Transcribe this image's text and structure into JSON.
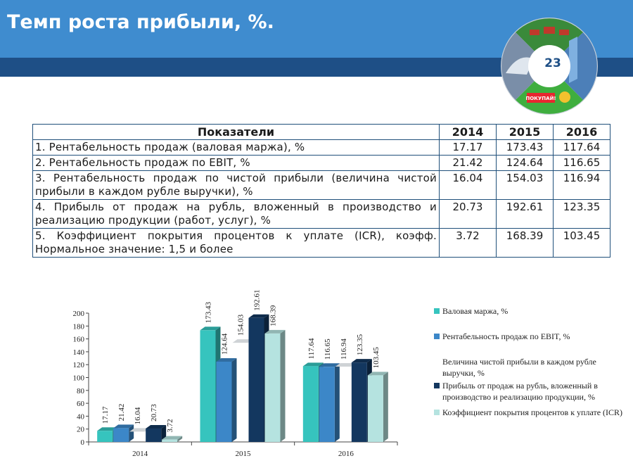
{
  "title": "Темп роста прибыли, %.",
  "page_number": "23",
  "emblem": {
    "badge_text": "ПОКУПАЙ!"
  },
  "table": {
    "headers": [
      "Показатели",
      "2014",
      "2015",
      "2016"
    ],
    "rows": [
      {
        "label": "1. Рентабельность продаж (валовая маржа), %",
        "values": [
          "17.17",
          "173.43",
          "117.64"
        ]
      },
      {
        "label": "2. Рентабельность продаж по EBIT, %",
        "values": [
          "21.42",
          "124.64",
          "116.65"
        ]
      },
      {
        "label": "3. Рентабельность продаж по чистой прибыли (величина чистой прибыли в каждом рубле выручки), %",
        "values": [
          "16.04",
          "154.03",
          "116.94"
        ]
      },
      {
        "label": "4. Прибыль от продаж на рубль, вложенный в производство и реализацию продукции (работ, услуг), %",
        "values": [
          "20.73",
          "192.61",
          "123.35"
        ]
      },
      {
        "label": "5. Коэффициент покрытия процентов к уплате (ICR), коэфф. Нормальное значение: 1,5 и более",
        "values": [
          "3.72",
          "168.39",
          "103.45"
        ]
      }
    ]
  },
  "chart_data": {
    "type": "bar",
    "categories": [
      "2014",
      "2015",
      "2016"
    ],
    "ylim": [
      0,
      200
    ],
    "yticks": [
      0,
      20,
      40,
      60,
      80,
      100,
      120,
      140,
      160,
      180,
      200
    ],
    "grid": false,
    "legend_position": "right",
    "series": [
      {
        "name": "Валовая маржа, %",
        "color": "#36c4be",
        "values": [
          17.17,
          173.43,
          117.64
        ]
      },
      {
        "name": "Рентабельность продаж по EBIT, %",
        "color": "#3c87c8",
        "values": [
          21.42,
          124.64,
          116.65
        ]
      },
      {
        "name": "Величина чистой прибыли в каждом рубле выручки, %",
        "color": "#ffffff",
        "values": [
          16.04,
          154.03,
          116.94
        ]
      },
      {
        "name": "Прибыль от продаж на рубль, вложенный в производство и реализацию продукции, %",
        "color": "#13375f",
        "values": [
          20.73,
          192.61,
          123.35
        ]
      },
      {
        "name": "Коэффициент покрытия процентов к уплате (ICR)",
        "color": "#b5e3e0",
        "values": [
          3.72,
          168.39,
          103.45
        ]
      }
    ]
  }
}
